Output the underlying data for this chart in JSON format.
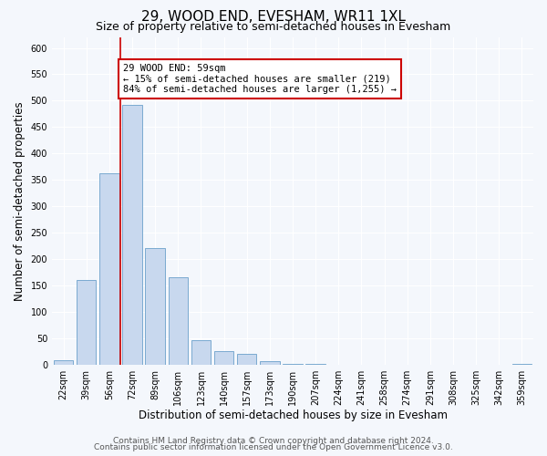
{
  "title": "29, WOOD END, EVESHAM, WR11 1XL",
  "subtitle": "Size of property relative to semi-detached houses in Evesham",
  "xlabel": "Distribution of semi-detached houses by size in Evesham",
  "ylabel": "Number of semi-detached properties",
  "categories": [
    "22sqm",
    "39sqm",
    "56sqm",
    "72sqm",
    "89sqm",
    "106sqm",
    "123sqm",
    "140sqm",
    "157sqm",
    "173sqm",
    "190sqm",
    "207sqm",
    "224sqm",
    "241sqm",
    "258sqm",
    "274sqm",
    "291sqm",
    "308sqm",
    "325sqm",
    "342sqm",
    "359sqm"
  ],
  "values": [
    8,
    160,
    362,
    492,
    220,
    165,
    47,
    25,
    20,
    7,
    2,
    1,
    0,
    0,
    0,
    0,
    0,
    0,
    0,
    0,
    2
  ],
  "bar_color": "#c8d8ee",
  "bar_edge_color": "#7aaad0",
  "vline_x_index": 2.5,
  "vline_color": "#cc0000",
  "annotation_box_text": "29 WOOD END: 59sqm\n← 15% of semi-detached houses are smaller (219)\n84% of semi-detached houses are larger (1,255) →",
  "annotation_box_color": "#cc0000",
  "ylim": [
    0,
    620
  ],
  "yticks": [
    0,
    50,
    100,
    150,
    200,
    250,
    300,
    350,
    400,
    450,
    500,
    550,
    600
  ],
  "footer_line1": "Contains HM Land Registry data © Crown copyright and database right 2024.",
  "footer_line2": "Contains public sector information licensed under the Open Government Licence v3.0.",
  "bg_color": "#f4f7fc",
  "plot_bg_color": "#f4f7fc",
  "title_fontsize": 11,
  "subtitle_fontsize": 9,
  "axis_label_fontsize": 8.5,
  "tick_fontsize": 7,
  "footer_fontsize": 6.5,
  "annotation_fontsize": 7.5
}
